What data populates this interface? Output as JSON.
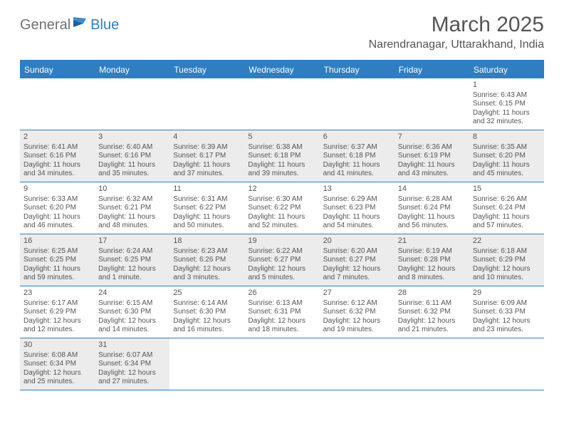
{
  "logo": {
    "general": "General",
    "blue": "Blue"
  },
  "title": "March 2025",
  "location": "Narendranagar, Uttarakhand, India",
  "header_bg": "#2f7ec2",
  "weekdays": [
    "Sunday",
    "Monday",
    "Tuesday",
    "Wednesday",
    "Thursday",
    "Friday",
    "Saturday"
  ],
  "cell_styles": {
    "shaded_bg": "#ececec",
    "text_color": "#555555",
    "border_color": "#2f7ec2",
    "day_font_size": 11,
    "detail_font_size": 10
  },
  "weeks": [
    [
      {
        "empty": true
      },
      {
        "empty": true
      },
      {
        "empty": true
      },
      {
        "empty": true
      },
      {
        "empty": true
      },
      {
        "empty": true
      },
      {
        "day": "1",
        "shaded": false,
        "sunrise": "Sunrise: 6:43 AM",
        "sunset": "Sunset: 6:15 PM",
        "daylight": "Daylight: 11 hours and 32 minutes."
      }
    ],
    [
      {
        "day": "2",
        "shaded": true,
        "sunrise": "Sunrise: 6:41 AM",
        "sunset": "Sunset: 6:16 PM",
        "daylight": "Daylight: 11 hours and 34 minutes."
      },
      {
        "day": "3",
        "shaded": true,
        "sunrise": "Sunrise: 6:40 AM",
        "sunset": "Sunset: 6:16 PM",
        "daylight": "Daylight: 11 hours and 35 minutes."
      },
      {
        "day": "4",
        "shaded": true,
        "sunrise": "Sunrise: 6:39 AM",
        "sunset": "Sunset: 6:17 PM",
        "daylight": "Daylight: 11 hours and 37 minutes."
      },
      {
        "day": "5",
        "shaded": true,
        "sunrise": "Sunrise: 6:38 AM",
        "sunset": "Sunset: 6:18 PM",
        "daylight": "Daylight: 11 hours and 39 minutes."
      },
      {
        "day": "6",
        "shaded": true,
        "sunrise": "Sunrise: 6:37 AM",
        "sunset": "Sunset: 6:18 PM",
        "daylight": "Daylight: 11 hours and 41 minutes."
      },
      {
        "day": "7",
        "shaded": true,
        "sunrise": "Sunrise: 6:36 AM",
        "sunset": "Sunset: 6:19 PM",
        "daylight": "Daylight: 11 hours and 43 minutes."
      },
      {
        "day": "8",
        "shaded": true,
        "sunrise": "Sunrise: 6:35 AM",
        "sunset": "Sunset: 6:20 PM",
        "daylight": "Daylight: 11 hours and 45 minutes."
      }
    ],
    [
      {
        "day": "9",
        "shaded": false,
        "sunrise": "Sunrise: 6:33 AM",
        "sunset": "Sunset: 6:20 PM",
        "daylight": "Daylight: 11 hours and 46 minutes."
      },
      {
        "day": "10",
        "shaded": false,
        "sunrise": "Sunrise: 6:32 AM",
        "sunset": "Sunset: 6:21 PM",
        "daylight": "Daylight: 11 hours and 48 minutes."
      },
      {
        "day": "11",
        "shaded": false,
        "sunrise": "Sunrise: 6:31 AM",
        "sunset": "Sunset: 6:22 PM",
        "daylight": "Daylight: 11 hours and 50 minutes."
      },
      {
        "day": "12",
        "shaded": false,
        "sunrise": "Sunrise: 6:30 AM",
        "sunset": "Sunset: 6:22 PM",
        "daylight": "Daylight: 11 hours and 52 minutes."
      },
      {
        "day": "13",
        "shaded": false,
        "sunrise": "Sunrise: 6:29 AM",
        "sunset": "Sunset: 6:23 PM",
        "daylight": "Daylight: 11 hours and 54 minutes."
      },
      {
        "day": "14",
        "shaded": false,
        "sunrise": "Sunrise: 6:28 AM",
        "sunset": "Sunset: 6:24 PM",
        "daylight": "Daylight: 11 hours and 56 minutes."
      },
      {
        "day": "15",
        "shaded": false,
        "sunrise": "Sunrise: 6:26 AM",
        "sunset": "Sunset: 6:24 PM",
        "daylight": "Daylight: 11 hours and 57 minutes."
      }
    ],
    [
      {
        "day": "16",
        "shaded": true,
        "sunrise": "Sunrise: 6:25 AM",
        "sunset": "Sunset: 6:25 PM",
        "daylight": "Daylight: 11 hours and 59 minutes."
      },
      {
        "day": "17",
        "shaded": true,
        "sunrise": "Sunrise: 6:24 AM",
        "sunset": "Sunset: 6:25 PM",
        "daylight": "Daylight: 12 hours and 1 minute."
      },
      {
        "day": "18",
        "shaded": true,
        "sunrise": "Sunrise: 6:23 AM",
        "sunset": "Sunset: 6:26 PM",
        "daylight": "Daylight: 12 hours and 3 minutes."
      },
      {
        "day": "19",
        "shaded": true,
        "sunrise": "Sunrise: 6:22 AM",
        "sunset": "Sunset: 6:27 PM",
        "daylight": "Daylight: 12 hours and 5 minutes."
      },
      {
        "day": "20",
        "shaded": true,
        "sunrise": "Sunrise: 6:20 AM",
        "sunset": "Sunset: 6:27 PM",
        "daylight": "Daylight: 12 hours and 7 minutes."
      },
      {
        "day": "21",
        "shaded": true,
        "sunrise": "Sunrise: 6:19 AM",
        "sunset": "Sunset: 6:28 PM",
        "daylight": "Daylight: 12 hours and 8 minutes."
      },
      {
        "day": "22",
        "shaded": true,
        "sunrise": "Sunrise: 6:18 AM",
        "sunset": "Sunset: 6:29 PM",
        "daylight": "Daylight: 12 hours and 10 minutes."
      }
    ],
    [
      {
        "day": "23",
        "shaded": false,
        "sunrise": "Sunrise: 6:17 AM",
        "sunset": "Sunset: 6:29 PM",
        "daylight": "Daylight: 12 hours and 12 minutes."
      },
      {
        "day": "24",
        "shaded": false,
        "sunrise": "Sunrise: 6:15 AM",
        "sunset": "Sunset: 6:30 PM",
        "daylight": "Daylight: 12 hours and 14 minutes."
      },
      {
        "day": "25",
        "shaded": false,
        "sunrise": "Sunrise: 6:14 AM",
        "sunset": "Sunset: 6:30 PM",
        "daylight": "Daylight: 12 hours and 16 minutes."
      },
      {
        "day": "26",
        "shaded": false,
        "sunrise": "Sunrise: 6:13 AM",
        "sunset": "Sunset: 6:31 PM",
        "daylight": "Daylight: 12 hours and 18 minutes."
      },
      {
        "day": "27",
        "shaded": false,
        "sunrise": "Sunrise: 6:12 AM",
        "sunset": "Sunset: 6:32 PM",
        "daylight": "Daylight: 12 hours and 19 minutes."
      },
      {
        "day": "28",
        "shaded": false,
        "sunrise": "Sunrise: 6:11 AM",
        "sunset": "Sunset: 6:32 PM",
        "daylight": "Daylight: 12 hours and 21 minutes."
      },
      {
        "day": "29",
        "shaded": false,
        "sunrise": "Sunrise: 6:09 AM",
        "sunset": "Sunset: 6:33 PM",
        "daylight": "Daylight: 12 hours and 23 minutes."
      }
    ],
    [
      {
        "day": "30",
        "shaded": true,
        "sunrise": "Sunrise: 6:08 AM",
        "sunset": "Sunset: 6:34 PM",
        "daylight": "Daylight: 12 hours and 25 minutes."
      },
      {
        "day": "31",
        "shaded": true,
        "sunrise": "Sunrise: 6:07 AM",
        "sunset": "Sunset: 6:34 PM",
        "daylight": "Daylight: 12 hours and 27 minutes."
      },
      {
        "empty": true
      },
      {
        "empty": true
      },
      {
        "empty": true
      },
      {
        "empty": true
      },
      {
        "empty": true
      }
    ]
  ]
}
